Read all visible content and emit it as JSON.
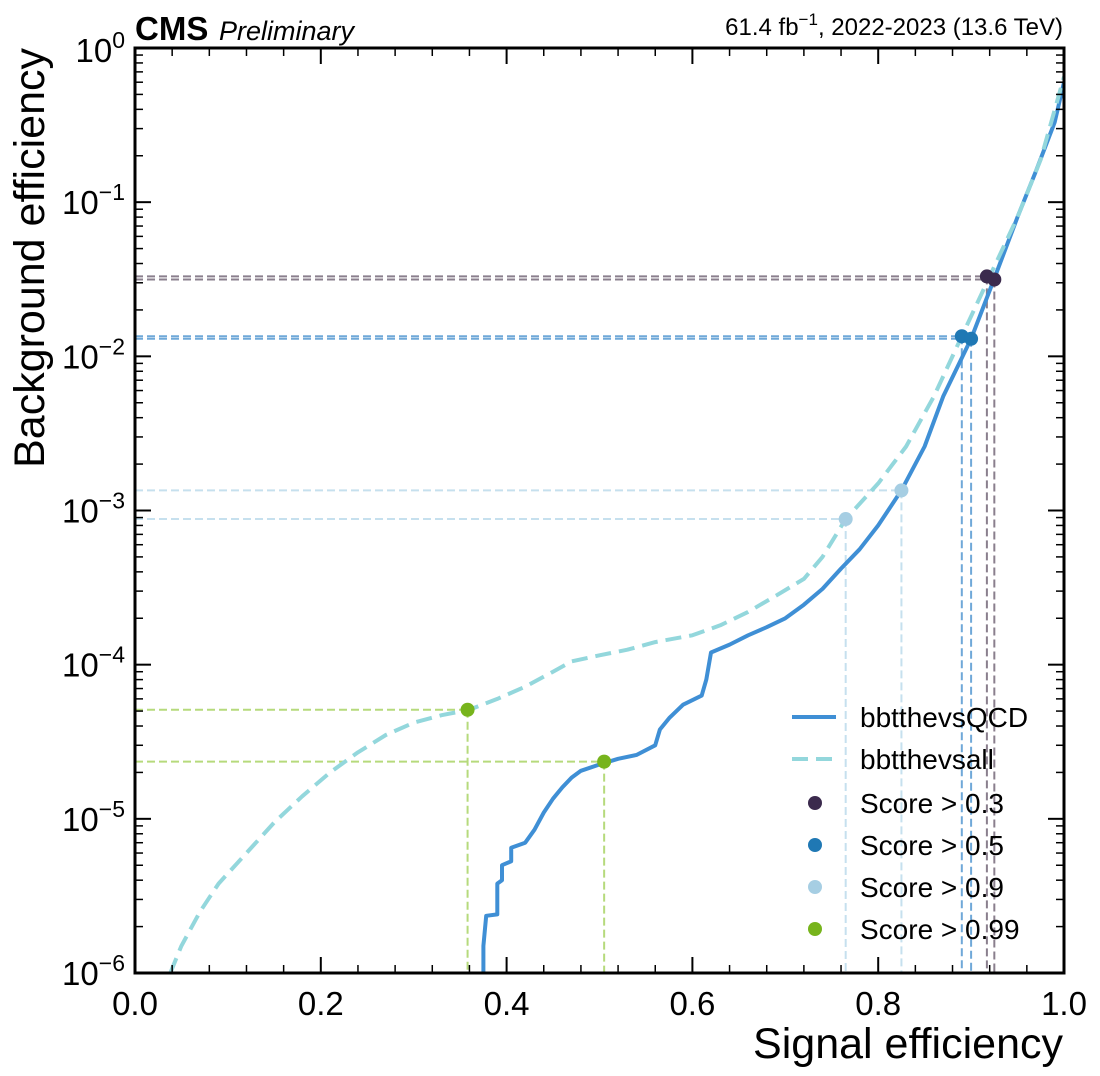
{
  "header": {
    "experiment": "CMS",
    "status": "Preliminary",
    "lumi_value": "61.4 fb",
    "lumi_exp": "−1",
    "lumi_rest": ", 2022-2023 (13.6 TeV)"
  },
  "chart_data": {
    "type": "line",
    "xlabel": "Signal efficiency",
    "ylabel": "Background efficiency",
    "xlim": [
      0.0,
      1.0
    ],
    "ylim": [
      1e-06,
      1.0
    ],
    "yscale": "log",
    "grid": false,
    "legend_position": "bottom-right",
    "x_ticks": [
      {
        "value": 0.0,
        "label": "0.0"
      },
      {
        "value": 0.2,
        "label": "0.2"
      },
      {
        "value": 0.4,
        "label": "0.4"
      },
      {
        "value": 0.6,
        "label": "0.6"
      },
      {
        "value": 0.8,
        "label": "0.8"
      },
      {
        "value": 1.0,
        "label": "1.0"
      }
    ],
    "y_ticks": [
      {
        "value": 1e-06,
        "base": "10",
        "exp": "−6"
      },
      {
        "value": 1e-05,
        "base": "10",
        "exp": "−5"
      },
      {
        "value": 0.0001,
        "base": "10",
        "exp": "−4"
      },
      {
        "value": 0.001,
        "base": "10",
        "exp": "−3"
      },
      {
        "value": 0.01,
        "base": "10",
        "exp": "−2"
      },
      {
        "value": 0.1,
        "base": "10",
        "exp": "−1"
      },
      {
        "value": 1,
        "base": "10",
        "exp": "0"
      }
    ],
    "series": [
      {
        "name": "bbtthevsQCD",
        "style": "solid",
        "color": "#3f8fd5",
        "points": [
          [
            0.375,
            1e-06
          ],
          [
            0.375,
            1.5e-06
          ],
          [
            0.378,
            2.35e-06
          ],
          [
            0.39,
            2.4e-06
          ],
          [
            0.39,
            3.8e-06
          ],
          [
            0.395,
            4e-06
          ],
          [
            0.395,
            5e-06
          ],
          [
            0.405,
            5.3e-06
          ],
          [
            0.405,
            6.5e-06
          ],
          [
            0.42,
            7e-06
          ],
          [
            0.43,
            8.5e-06
          ],
          [
            0.44,
            1.1e-05
          ],
          [
            0.45,
            1.35e-05
          ],
          [
            0.46,
            1.6e-05
          ],
          [
            0.47,
            1.85e-05
          ],
          [
            0.48,
            2.05e-05
          ],
          [
            0.5,
            2.25e-05
          ],
          [
            0.52,
            2.45e-05
          ],
          [
            0.54,
            2.6e-05
          ],
          [
            0.56,
            3e-05
          ],
          [
            0.565,
            3.8e-05
          ],
          [
            0.575,
            4.5e-05
          ],
          [
            0.59,
            5.5e-05
          ],
          [
            0.61,
            6.3e-05
          ],
          [
            0.615,
            8e-05
          ],
          [
            0.62,
            0.00012
          ],
          [
            0.64,
            0.000135
          ],
          [
            0.66,
            0.000155
          ],
          [
            0.68,
            0.000175
          ],
          [
            0.7,
            0.0002
          ],
          [
            0.72,
            0.000245
          ],
          [
            0.74,
            0.00031
          ],
          [
            0.76,
            0.00042
          ],
          [
            0.78,
            0.00056
          ],
          [
            0.8,
            0.0008
          ],
          [
            0.825,
            0.00135
          ],
          [
            0.85,
            0.0026
          ],
          [
            0.87,
            0.0055
          ],
          [
            0.9,
            0.013
          ],
          [
            0.925,
            0.032
          ],
          [
            0.95,
            0.08
          ],
          [
            0.97,
            0.16
          ],
          [
            0.99,
            0.33
          ],
          [
            1.0,
            0.6
          ]
        ]
      },
      {
        "name": "bbtthevsall",
        "style": "dashed",
        "color": "#93d7dc",
        "points": [
          [
            0.038,
            1e-06
          ],
          [
            0.05,
            1.5e-06
          ],
          [
            0.07,
            2.5e-06
          ],
          [
            0.09,
            3.8e-06
          ],
          [
            0.12,
            6e-06
          ],
          [
            0.15,
            9.5e-06
          ],
          [
            0.18,
            1.4e-05
          ],
          [
            0.21,
            2e-05
          ],
          [
            0.24,
            2.7e-05
          ],
          [
            0.27,
            3.5e-05
          ],
          [
            0.3,
            4.2e-05
          ],
          [
            0.33,
            4.7e-05
          ],
          [
            0.36,
            5.1e-05
          ],
          [
            0.39,
            6e-05
          ],
          [
            0.42,
            7.2e-05
          ],
          [
            0.45,
            9e-05
          ],
          [
            0.47,
            0.000105
          ],
          [
            0.5,
            0.000115
          ],
          [
            0.53,
            0.000125
          ],
          [
            0.56,
            0.00014
          ],
          [
            0.6,
            0.000155
          ],
          [
            0.63,
            0.00018
          ],
          [
            0.66,
            0.00022
          ],
          [
            0.69,
            0.00028
          ],
          [
            0.72,
            0.00036
          ],
          [
            0.74,
            0.0005
          ],
          [
            0.765,
            0.00088
          ],
          [
            0.8,
            0.0015
          ],
          [
            0.83,
            0.0026
          ],
          [
            0.86,
            0.0055
          ],
          [
            0.89,
            0.0135
          ],
          [
            0.92,
            0.033
          ],
          [
            0.95,
            0.08
          ],
          [
            0.975,
            0.19
          ],
          [
            1.0,
            0.65
          ]
        ]
      }
    ],
    "working_points": [
      {
        "label": "Score > 0.3",
        "color": "#3b2a4d",
        "line_color": "#8a7f8d",
        "points": [
          [
            0.917,
            0.033
          ],
          [
            0.925,
            0.0315
          ]
        ]
      },
      {
        "label": "Score > 0.5",
        "color": "#1f78b4",
        "line_color": "#6fa8d8",
        "points": [
          [
            0.89,
            0.0135
          ],
          [
            0.9,
            0.013
          ]
        ]
      },
      {
        "label": "Score > 0.9",
        "color": "#a6cee3",
        "line_color": "#c6e0ee",
        "points": [
          [
            0.765,
            0.00088
          ],
          [
            0.825,
            0.00135
          ]
        ]
      },
      {
        "label": "Score > 0.99",
        "color": "#77b41c",
        "line_color": "#b6da7c",
        "points": [
          [
            0.358,
            5.1e-05
          ],
          [
            0.505,
            2.35e-05
          ]
        ]
      }
    ]
  }
}
